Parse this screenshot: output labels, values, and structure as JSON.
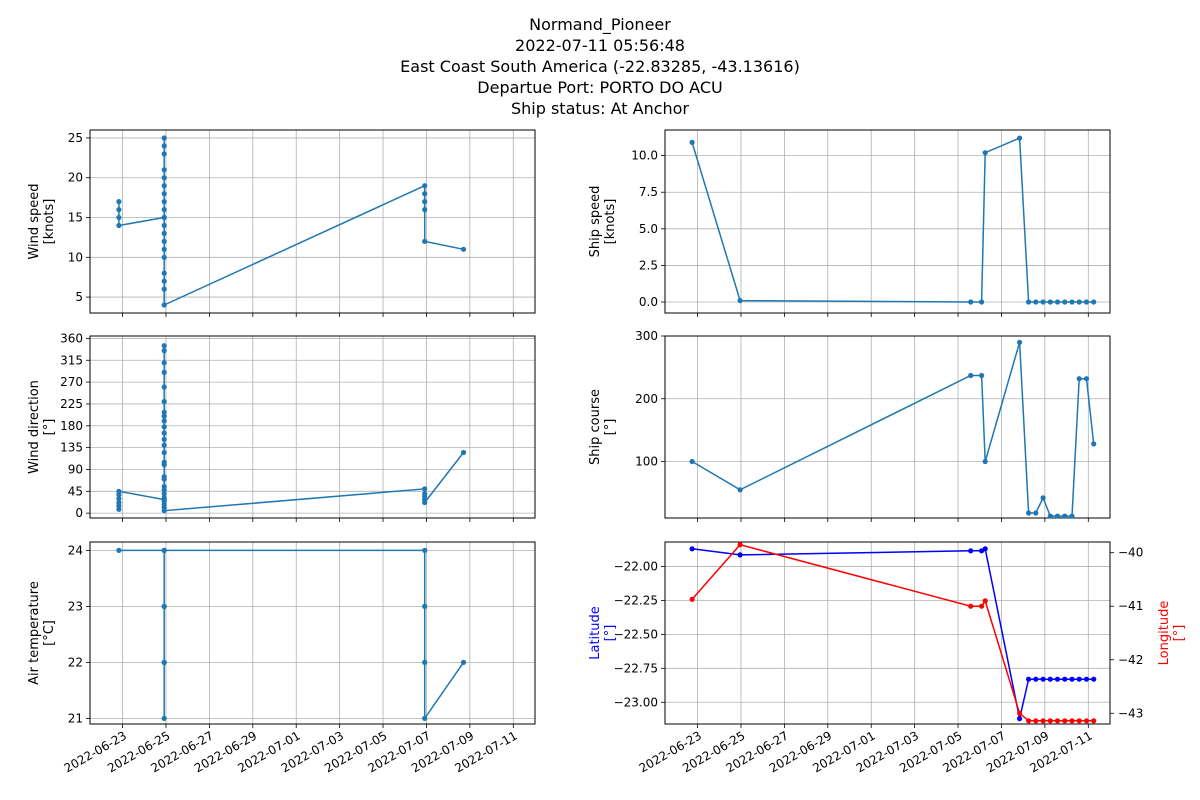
{
  "title_lines": [
    "Normand_Pioneer",
    "2022-07-11 05:56:48",
    "East Coast South America (-22.83285, -43.13616)",
    "Departue Port: PORTO DO ACU",
    "Ship status: At Anchor"
  ],
  "colors": {
    "series": "#1f77b4",
    "latitude": "#0000ff",
    "longitude": "#ff0000",
    "grid": "#b0b0b0"
  },
  "x_axis": {
    "type": "date",
    "range": [
      "2022-06-21T12:00:00",
      "2022-07-12T00:00:00"
    ],
    "ticks": [
      "2022-06-23",
      "2022-06-25",
      "2022-06-27",
      "2022-06-29",
      "2022-07-01",
      "2022-07-03",
      "2022-07-05",
      "2022-07-07",
      "2022-07-09",
      "2022-07-11"
    ]
  },
  "chart_data": [
    {
      "type": "line",
      "ylabel": [
        "Wind speed",
        "[knots]"
      ],
      "ylim": [
        3,
        26
      ],
      "yticks": [
        5,
        10,
        15,
        20,
        25
      ],
      "grid": true,
      "series": [
        {
          "color": "#1f77b4",
          "points": [
            [
              "2022-06-22T20:00:00",
              17
            ],
            [
              "2022-06-22T20:00:00",
              16
            ],
            [
              "2022-06-22T20:00:00",
              15
            ],
            [
              "2022-06-22T20:00:00",
              14
            ],
            [
              "2022-06-24T22:00:00",
              15
            ],
            [
              "2022-06-24T22:00:00",
              25
            ],
            [
              "2022-06-24T22:00:00",
              24
            ],
            [
              "2022-06-24T22:00:00",
              23
            ],
            [
              "2022-06-24T22:00:00",
              21
            ],
            [
              "2022-06-24T22:00:00",
              20
            ],
            [
              "2022-06-24T22:00:00",
              19
            ],
            [
              "2022-06-24T22:00:00",
              18
            ],
            [
              "2022-06-24T22:00:00",
              17
            ],
            [
              "2022-06-24T22:00:00",
              16
            ],
            [
              "2022-06-24T22:00:00",
              15
            ],
            [
              "2022-06-24T22:00:00",
              14
            ],
            [
              "2022-06-24T22:00:00",
              13
            ],
            [
              "2022-06-24T22:00:00",
              12
            ],
            [
              "2022-06-24T22:00:00",
              11
            ],
            [
              "2022-06-24T22:00:00",
              10
            ],
            [
              "2022-06-24T22:00:00",
              8
            ],
            [
              "2022-06-24T22:00:00",
              7
            ],
            [
              "2022-06-24T22:00:00",
              6
            ],
            [
              "2022-06-24T22:00:00",
              4
            ],
            [
              "2022-07-06T22:00:00",
              19
            ],
            [
              "2022-07-06T22:00:00",
              18
            ],
            [
              "2022-07-06T22:00:00",
              17
            ],
            [
              "2022-07-06T22:00:00",
              16
            ],
            [
              "2022-07-06T22:00:00",
              12
            ],
            [
              "2022-07-08T17:00:00",
              11
            ]
          ]
        }
      ]
    },
    {
      "type": "line",
      "ylabel": [
        "Ship speed",
        "[knots]"
      ],
      "ylim": [
        -0.75,
        11.75
      ],
      "yticks": [
        0.0,
        2.5,
        5.0,
        7.5,
        10.0
      ],
      "ytick_format": "fixed1",
      "grid": true,
      "series": [
        {
          "color": "#1f77b4",
          "points": [
            [
              "2022-06-22T18:00:00",
              10.9
            ],
            [
              "2022-06-24T23:00:00",
              0.1
            ],
            [
              "2022-07-05T14:00:00",
              0.0
            ],
            [
              "2022-07-06T02:00:00",
              0.0
            ],
            [
              "2022-07-06T06:00:00",
              10.2
            ],
            [
              "2022-07-07T20:00:00",
              11.2
            ],
            [
              "2022-07-08T06:00:00",
              0.0
            ],
            [
              "2022-07-08T14:00:00",
              0.0
            ],
            [
              "2022-07-08T22:00:00",
              0.0
            ],
            [
              "2022-07-09T06:00:00",
              0.0
            ],
            [
              "2022-07-09T14:00:00",
              0.0
            ],
            [
              "2022-07-09T22:00:00",
              0.0
            ],
            [
              "2022-07-10T06:00:00",
              0.0
            ],
            [
              "2022-07-10T14:00:00",
              0.0
            ],
            [
              "2022-07-10T22:00:00",
              0.0
            ],
            [
              "2022-07-11T06:00:00",
              0.0
            ]
          ]
        }
      ]
    },
    {
      "type": "line",
      "ylabel": [
        "Wind direction",
        "[°]"
      ],
      "ylim": [
        -10,
        365
      ],
      "yticks": [
        0,
        45,
        90,
        135,
        180,
        225,
        270,
        315,
        360
      ],
      "grid": true,
      "series": [
        {
          "color": "#1f77b4",
          "points": [
            [
              "2022-06-22T20:00:00",
              8
            ],
            [
              "2022-06-22T20:00:00",
              15
            ],
            [
              "2022-06-22T20:00:00",
              22
            ],
            [
              "2022-06-22T20:00:00",
              30
            ],
            [
              "2022-06-22T20:00:00",
              38
            ],
            [
              "2022-06-22T20:00:00",
              45
            ],
            [
              "2022-06-24T22:00:00",
              28
            ],
            [
              "2022-06-24T22:00:00",
              345
            ],
            [
              "2022-06-24T22:00:00",
              335
            ],
            [
              "2022-06-24T22:00:00",
              310
            ],
            [
              "2022-06-24T22:00:00",
              290
            ],
            [
              "2022-06-24T22:00:00",
              260
            ],
            [
              "2022-06-24T22:00:00",
              230
            ],
            [
              "2022-06-24T22:00:00",
              208
            ],
            [
              "2022-06-24T22:00:00",
              200
            ],
            [
              "2022-06-24T22:00:00",
              190
            ],
            [
              "2022-06-24T22:00:00",
              178
            ],
            [
              "2022-06-24T22:00:00",
              165
            ],
            [
              "2022-06-24T22:00:00",
              152
            ],
            [
              "2022-06-24T22:00:00",
              140
            ],
            [
              "2022-06-24T22:00:00",
              125
            ],
            [
              "2022-06-24T22:00:00",
              105
            ],
            [
              "2022-06-24T22:00:00",
              100
            ],
            [
              "2022-06-24T22:00:00",
              75
            ],
            [
              "2022-06-24T22:00:00",
              70
            ],
            [
              "2022-06-24T22:00:00",
              55
            ],
            [
              "2022-06-24T22:00:00",
              48
            ],
            [
              "2022-06-24T22:00:00",
              40
            ],
            [
              "2022-06-24T22:00:00",
              32
            ],
            [
              "2022-06-24T22:00:00",
              25
            ],
            [
              "2022-06-24T22:00:00",
              18
            ],
            [
              "2022-06-24T22:00:00",
              12
            ],
            [
              "2022-06-24T22:00:00",
              5
            ],
            [
              "2022-07-06T22:00:00",
              50
            ],
            [
              "2022-07-06T22:00:00",
              40
            ],
            [
              "2022-07-06T22:00:00",
              35
            ],
            [
              "2022-07-06T22:00:00",
              28
            ],
            [
              "2022-07-06T22:00:00",
              22
            ],
            [
              "2022-07-08T17:00:00",
              125
            ]
          ]
        }
      ]
    },
    {
      "type": "line",
      "ylabel": [
        "Ship course",
        "[°]"
      ],
      "ylim": [
        10,
        300
      ],
      "yticks": [
        100,
        200,
        300
      ],
      "grid": true,
      "series": [
        {
          "color": "#1f77b4",
          "points": [
            [
              "2022-06-22T18:00:00",
              100
            ],
            [
              "2022-06-24T23:00:00",
              55
            ],
            [
              "2022-07-05T14:00:00",
              237
            ],
            [
              "2022-07-06T02:00:00",
              237
            ],
            [
              "2022-07-06T06:00:00",
              100
            ],
            [
              "2022-07-07T20:00:00",
              290
            ],
            [
              "2022-07-08T06:00:00",
              18
            ],
            [
              "2022-07-08T14:00:00",
              18
            ],
            [
              "2022-07-08T22:00:00",
              42
            ],
            [
              "2022-07-09T06:00:00",
              13
            ],
            [
              "2022-07-09T14:00:00",
              13
            ],
            [
              "2022-07-09T22:00:00",
              13
            ],
            [
              "2022-07-10T06:00:00",
              13
            ],
            [
              "2022-07-10T14:00:00",
              232
            ],
            [
              "2022-07-10T22:00:00",
              232
            ],
            [
              "2022-07-11T06:00:00",
              128
            ]
          ]
        }
      ]
    },
    {
      "type": "line",
      "ylabel": [
        "Air temperature",
        "[°C]"
      ],
      "ylim": [
        20.9,
        24.15
      ],
      "yticks": [
        21,
        22,
        23,
        24
      ],
      "grid": true,
      "series": [
        {
          "color": "#1f77b4",
          "points": [
            [
              "2022-06-22T20:00:00",
              24
            ],
            [
              "2022-06-24T22:00:00",
              24
            ],
            [
              "2022-06-24T22:00:00",
              23
            ],
            [
              "2022-06-24T22:00:00",
              22
            ],
            [
              "2022-06-24T22:00:00",
              21
            ],
            [
              "2022-06-24T22:00:00",
              22
            ],
            [
              "2022-06-24T22:00:00",
              23
            ],
            [
              "2022-06-24T22:00:00",
              24
            ],
            [
              "2022-07-06T22:00:00",
              24
            ],
            [
              "2022-07-06T22:00:00",
              23
            ],
            [
              "2022-07-06T22:00:00",
              22
            ],
            [
              "2022-07-06T22:00:00",
              21
            ],
            [
              "2022-07-08T17:00:00",
              22
            ]
          ]
        }
      ]
    },
    {
      "type": "line",
      "ylabel": [
        "Latitude",
        "[°]"
      ],
      "ylabel_right": [
        "Longitude",
        "[°]"
      ],
      "ylim": [
        -23.16,
        -21.82
      ],
      "yticks": [
        -22.0,
        -22.25,
        -22.5,
        -22.75,
        -23.0
      ],
      "ytick_format": "fixed2",
      "ylim_right": [
        -43.2,
        -39.8
      ],
      "yticks_right": [
        -40,
        -41,
        -42,
        -43
      ],
      "grid": true,
      "series": [
        {
          "color": "#0000ff",
          "axis": "left",
          "points": [
            [
              "2022-06-22T18:00:00",
              -21.87
            ],
            [
              "2022-06-24T23:00:00",
              -21.915
            ],
            [
              "2022-07-05T14:00:00",
              -21.885
            ],
            [
              "2022-07-06T02:00:00",
              -21.885
            ],
            [
              "2022-07-06T06:00:00",
              -21.87
            ],
            [
              "2022-07-07T20:00:00",
              -23.12
            ],
            [
              "2022-07-08T06:00:00",
              -22.83
            ],
            [
              "2022-07-08T14:00:00",
              -22.83
            ],
            [
              "2022-07-08T22:00:00",
              -22.83
            ],
            [
              "2022-07-09T06:00:00",
              -22.83
            ],
            [
              "2022-07-09T14:00:00",
              -22.83
            ],
            [
              "2022-07-09T22:00:00",
              -22.83
            ],
            [
              "2022-07-10T06:00:00",
              -22.83
            ],
            [
              "2022-07-10T14:00:00",
              -22.83
            ],
            [
              "2022-07-10T22:00:00",
              -22.83
            ],
            [
              "2022-07-11T06:00:00",
              -22.83
            ]
          ]
        },
        {
          "color": "#ff0000",
          "axis": "right",
          "points": [
            [
              "2022-06-22T18:00:00",
              -40.87
            ],
            [
              "2022-06-24T23:00:00",
              -39.85
            ],
            [
              "2022-07-05T14:00:00",
              -41.0
            ],
            [
              "2022-07-06T02:00:00",
              -41.0
            ],
            [
              "2022-07-06T06:00:00",
              -40.9
            ],
            [
              "2022-07-07T20:00:00",
              -43.0
            ],
            [
              "2022-07-08T06:00:00",
              -43.14
            ],
            [
              "2022-07-08T14:00:00",
              -43.14
            ],
            [
              "2022-07-08T22:00:00",
              -43.14
            ],
            [
              "2022-07-09T06:00:00",
              -43.14
            ],
            [
              "2022-07-09T14:00:00",
              -43.14
            ],
            [
              "2022-07-09T22:00:00",
              -43.14
            ],
            [
              "2022-07-10T06:00:00",
              -43.14
            ],
            [
              "2022-07-10T14:00:00",
              -43.14
            ],
            [
              "2022-07-10T22:00:00",
              -43.14
            ],
            [
              "2022-07-11T06:00:00",
              -43.14
            ]
          ]
        }
      ]
    }
  ]
}
